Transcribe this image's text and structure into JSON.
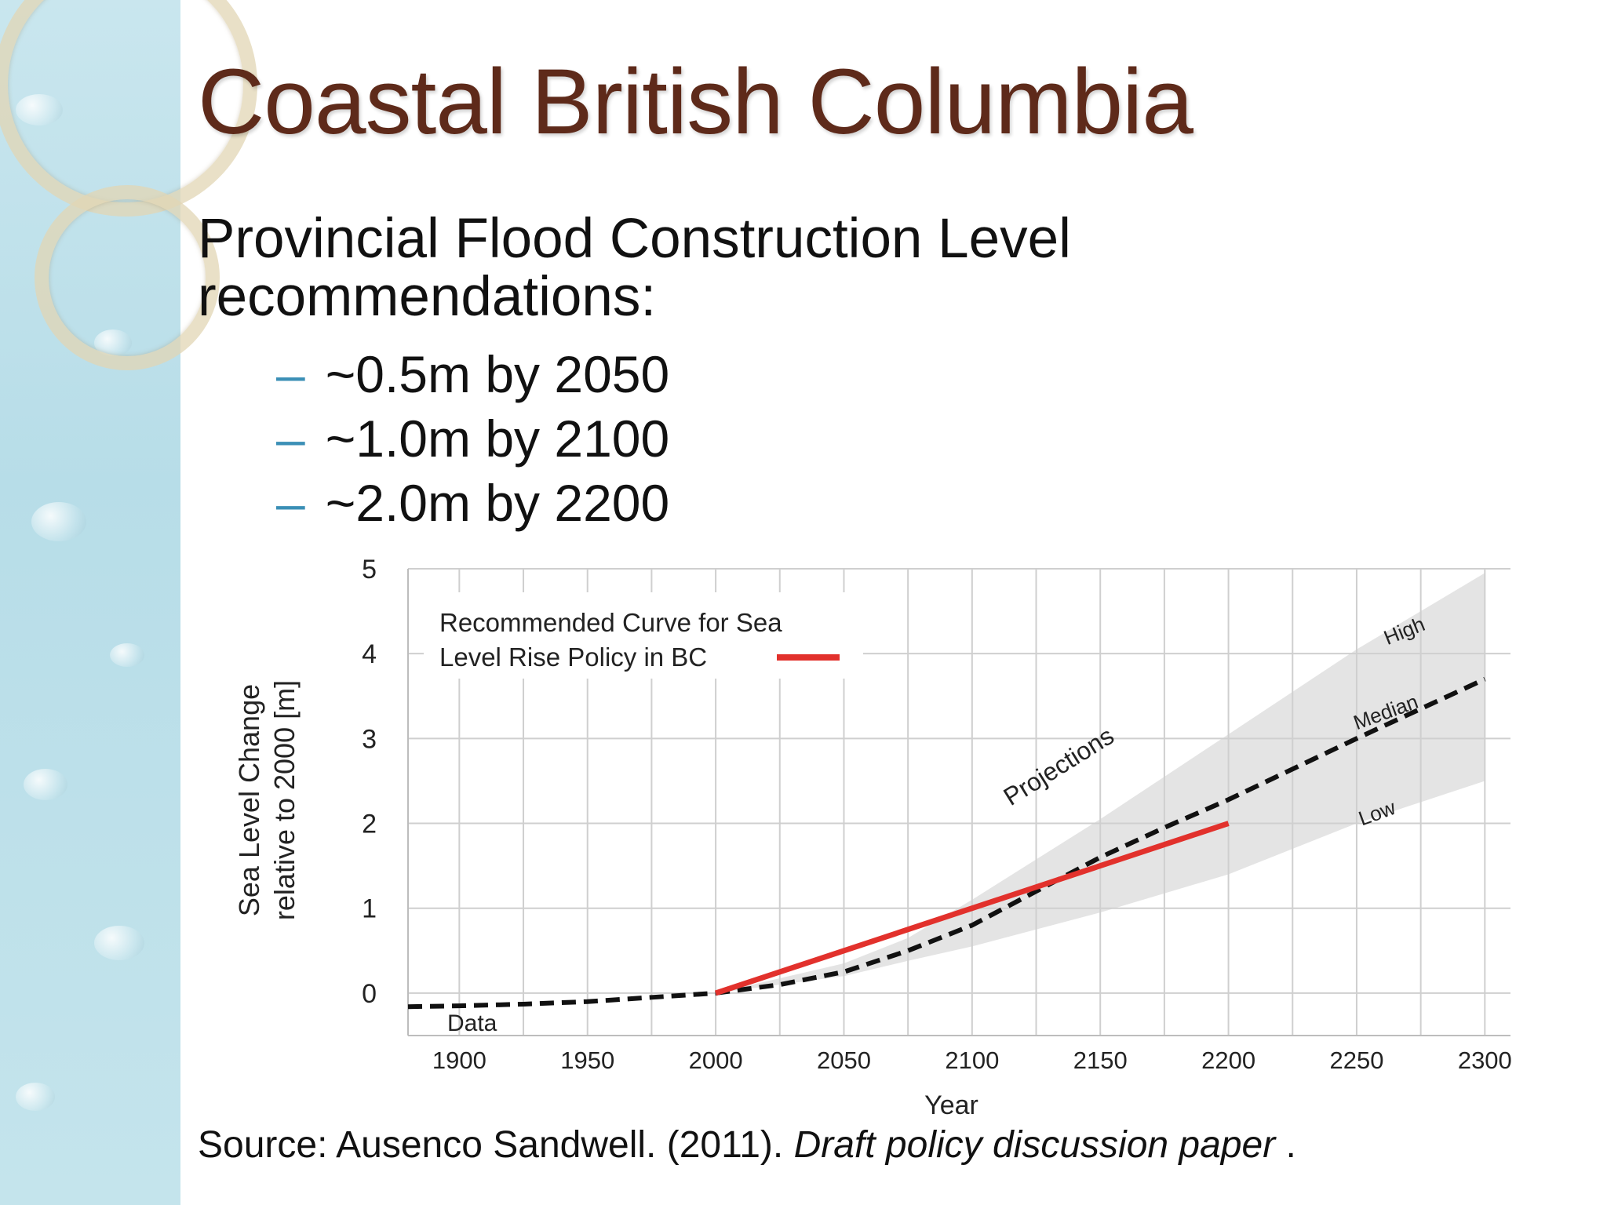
{
  "slide": {
    "title": "Coastal British Columbia",
    "subtitle_line1": "Provincial Flood Construction Level",
    "subtitle_line2": "recommendations:",
    "bullet_marker": "–",
    "bullets": [
      "~0.5m by 2050",
      "~1.0m by 2100",
      "~2.0m by 2200"
    ],
    "source_prefix": "Source: Ausenco Sandwell. (2011).",
    "source_title": "Draft policy discussion paper",
    "source_suffix": "."
  },
  "colors": {
    "title": "#5e2a1a",
    "bullet_dash": "#3b8fb6",
    "recommended_curve": "#e2312c",
    "projection_band": "#e4e4e4",
    "median_line": "#111111"
  },
  "chart_data": {
    "type": "line",
    "xlabel": "Year",
    "ylabel_line1": "Sea Level Change",
    "ylabel_line2": "relative to 2000 [m]",
    "x_ticks": [
      1900,
      1950,
      2000,
      2050,
      2100,
      2150,
      2200,
      2250,
      2300
    ],
    "y_ticks": [
      0,
      1,
      2,
      3,
      4,
      5
    ],
    "xlim": [
      1880,
      2310
    ],
    "ylim": [
      -0.5,
      5
    ],
    "grid": true,
    "legend_line1": "Recommended Curve for Sea",
    "legend_line2": "Level Rise Policy in BC",
    "legend_position": "top-left",
    "annotations": {
      "data": "Data",
      "projections": "Projections",
      "high": "High",
      "median": "Median",
      "low": "Low"
    },
    "series": [
      {
        "name": "Recommended Curve for Sea Level Rise Policy in BC",
        "style": "solid",
        "x": [
          2000,
          2200
        ],
        "y": [
          0.0,
          2.0
        ]
      },
      {
        "name": "Data",
        "style": "dashed",
        "x": [
          1880,
          1900,
          1925,
          1950,
          1975,
          2000
        ],
        "y": [
          -0.16,
          -0.15,
          -0.13,
          -0.1,
          -0.05,
          0.0
        ]
      },
      {
        "name": "Median",
        "style": "dashed",
        "x": [
          2000,
          2025,
          2050,
          2075,
          2100,
          2125,
          2150,
          2175,
          2200,
          2250,
          2300
        ],
        "y": [
          0.0,
          0.1,
          0.25,
          0.5,
          0.8,
          1.2,
          1.6,
          1.95,
          2.28,
          3.0,
          3.7
        ]
      }
    ],
    "projection_band": {
      "x": [
        2000,
        2050,
        2075,
        2100,
        2150,
        2200,
        2250,
        2300
      ],
      "low": [
        0.0,
        0.2,
        0.38,
        0.55,
        0.95,
        1.4,
        2.0,
        2.5
      ],
      "high": [
        0.0,
        0.35,
        0.65,
        1.1,
        2.05,
        3.05,
        4.05,
        4.95
      ]
    }
  }
}
